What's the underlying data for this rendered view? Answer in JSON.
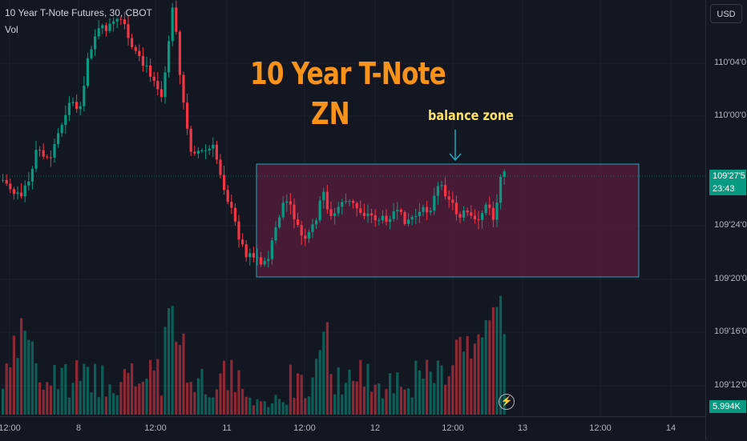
{
  "header": {
    "symbol_line": "10 Year T-Note Futures, 30, CBOT",
    "volume_label": "Vol"
  },
  "annotations": {
    "title_line1": "10 Year T-Note",
    "title_line2": "ZN",
    "balance_zone_label": "balance zone"
  },
  "price_axis": {
    "currency_button": "USD",
    "labels": [
      "110'04'0",
      "110'00'0",
      "109'24'0",
      "109'20'0",
      "109'16'0",
      "109'12'0"
    ],
    "current_price": "109'27'5",
    "countdown": "23:43",
    "volume_value": "5.994K"
  },
  "time_axis": {
    "labels": [
      "12:00",
      "8",
      "12:00",
      "11",
      "12:00",
      "12",
      "12:00",
      "13",
      "12:00",
      "14"
    ]
  },
  "colors": {
    "up": "#089981",
    "down": "#f23645",
    "zone_fill": "#5a1e3c",
    "zone_border": "#26a6b8",
    "title": "#f7931a",
    "label": "#ffe066"
  },
  "chart_data": {
    "type": "candlestick",
    "interval": "30",
    "price_min": "109'20'0",
    "price_max": "110'04'0",
    "current_price": "109'27'5",
    "balance_zone": {
      "label": "balance zone"
    }
  }
}
